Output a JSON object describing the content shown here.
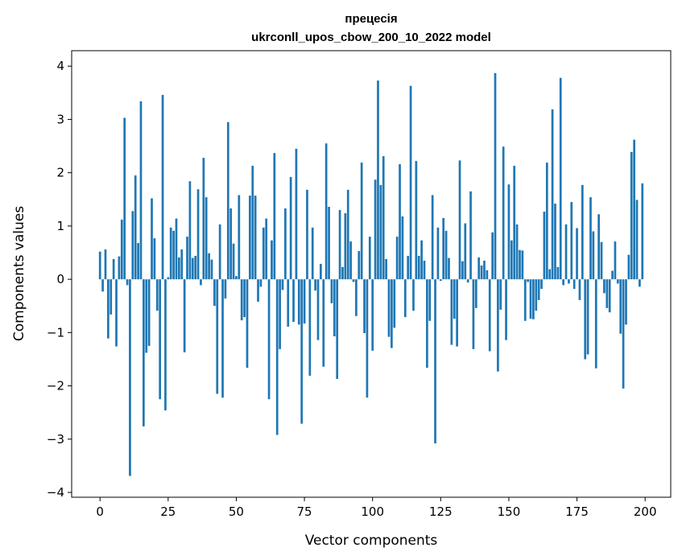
{
  "chart_data": {
    "type": "bar",
    "title": [
      "прецесія",
      "ukrconll_upos_cbow_200_10_2022 model"
    ],
    "xlabel": "Vector components",
    "ylabel": "Components values",
    "xlim": [
      -10.4,
      209.4
    ],
    "ylim": [
      -4.09,
      4.29
    ],
    "xticks": [
      0,
      25,
      50,
      75,
      100,
      125,
      150,
      175,
      200
    ],
    "yticks": [
      -4,
      -3,
      -2,
      -1,
      0,
      1,
      2,
      3,
      4
    ],
    "ytick_labels": [
      "−4",
      "−3",
      "−2",
      "−1",
      "0",
      "1",
      "2",
      "3",
      "4"
    ],
    "grid": false,
    "bar_color": "#1f77b4",
    "values": [
      0.52,
      -0.23,
      0.56,
      -1.11,
      -0.66,
      0.38,
      -1.26,
      0.43,
      1.12,
      3.03,
      -0.11,
      -3.69,
      1.28,
      1.95,
      0.68,
      3.34,
      -2.76,
      -1.38,
      -1.25,
      1.52,
      0.77,
      -0.59,
      -2.25,
      3.46,
      -2.46,
      0.04,
      0.97,
      0.91,
      1.14,
      0.41,
      0.56,
      -1.37,
      0.8,
      1.84,
      0.4,
      0.44,
      1.69,
      -0.11,
      2.28,
      1.54,
      0.49,
      0.37,
      -0.5,
      -2.15,
      1.03,
      -2.22,
      -0.36,
      2.95,
      1.33,
      0.67,
      0.06,
      1.58,
      -0.77,
      -0.71,
      -1.66,
      1.57,
      2.13,
      1.57,
      -0.42,
      -0.14,
      0.97,
      1.14,
      -2.25,
      0.73,
      2.37,
      -2.92,
      -1.31,
      -0.2,
      1.33,
      -0.89,
      1.92,
      -0.8,
      2.45,
      -0.85,
      -2.71,
      -0.83,
      1.68,
      -1.81,
      0.97,
      -0.21,
      -1.14,
      0.29,
      -1.64,
      2.55,
      1.36,
      -0.45,
      -1.07,
      -1.87,
      1.3,
      0.23,
      1.24,
      1.68,
      0.71,
      -0.05,
      -0.69,
      0.53,
      2.19,
      -1.01,
      -2.22,
      0.8,
      -1.34,
      1.87,
      3.73,
      1.77,
      2.31,
      0.38,
      -1.08,
      -1.29,
      -0.91,
      0.8,
      2.16,
      1.18,
      -0.71,
      0.44,
      3.63,
      -0.59,
      2.22,
      0.44,
      0.73,
      0.35,
      -1.66,
      -0.78,
      1.58,
      -3.08,
      0.97,
      -0.03,
      1.15,
      0.91,
      0.4,
      -1.23,
      -0.74,
      -1.26,
      2.23,
      0.34,
      1.05,
      -0.06,
      1.65,
      -1.31,
      -0.54,
      0.41,
      0.26,
      0.35,
      0.17,
      -1.35,
      0.88,
      3.87,
      -1.73,
      -0.57,
      2.49,
      -1.14,
      1.78,
      0.73,
      2.13,
      1.03,
      0.55,
      0.54,
      -0.78,
      -0.05,
      -0.74,
      -0.75,
      -0.59,
      -0.39,
      -0.18,
      1.27,
      2.19,
      0.19,
      3.19,
      1.42,
      0.23,
      3.78,
      -0.11,
      1.03,
      -0.08,
      1.45,
      -0.18,
      0.96,
      -0.39,
      1.77,
      -1.5,
      -1.41,
      1.54,
      0.9,
      -1.67,
      1.22,
      0.7,
      -0.26,
      -0.54,
      -0.62,
      0.16,
      0.71,
      -0.08,
      -1.02,
      -2.05,
      -0.85,
      0.46,
      2.39,
      2.62,
      1.49,
      -0.14,
      1.8
    ]
  }
}
